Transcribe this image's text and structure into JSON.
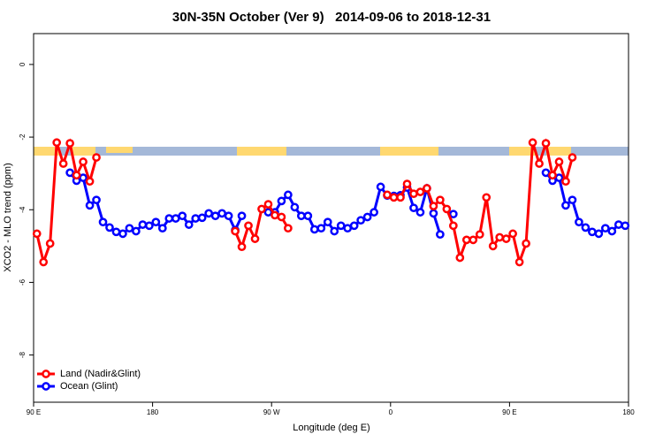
{
  "chart_data": {
    "type": "line",
    "title": "30N-35N October (Ver 9)   2014-09-06 to 2018-12-31",
    "x_label": "Longitude (deg E)",
    "y_label": "XCO2 - MLO trend (ppm)",
    "x": [
      92.5,
      97.5,
      102.5,
      107.5,
      112.5,
      117.5,
      122.5,
      127.5,
      132.5,
      137.5,
      142.5,
      147.5,
      152.5,
      157.5,
      162.5,
      167.5,
      172.5,
      177.5,
      182.5,
      187.5,
      192.5,
      197.5,
      202.5,
      207.5,
      212.5,
      217.5,
      222.5,
      227.5,
      232.5,
      237.5,
      242.5,
      247.5,
      252.5,
      257.5,
      262.5,
      267.5,
      272.5,
      277.5,
      282.5,
      287.5,
      292.5,
      297.5,
      302.5,
      307.5,
      312.5,
      317.5,
      322.5,
      327.5,
      332.5,
      337.5,
      342.5,
      347.5,
      352.5,
      357.5,
      362.5,
      367.5,
      372.5,
      377.5,
      382.5,
      387.5,
      392.5,
      397.5,
      402.5,
      407.5,
      412.5,
      417.5,
      422.5,
      427.5,
      432.5,
      437.5,
      442.5,
      447.5,
      452.5,
      457.5,
      462.5,
      467.5,
      472.5,
      477.5,
      482.5,
      487.5,
      492.5,
      497.5,
      502.5,
      507.5,
      512.5,
      517.5,
      522.5,
      527.5,
      532.5,
      537.5
    ],
    "series": [
      {
        "name": "Ocean (Glint)",
        "color": "#0000ff",
        "values": [
          null,
          null,
          null,
          null,
          null,
          -2.98,
          -3.2,
          -3.12,
          -3.88,
          -3.73,
          -4.34,
          -4.49,
          -4.61,
          -4.66,
          -4.51,
          -4.59,
          -4.41,
          -4.44,
          -4.34,
          -4.51,
          -4.24,
          -4.24,
          -4.17,
          -4.41,
          -4.24,
          -4.22,
          -4.1,
          -4.17,
          -4.1,
          -4.17,
          -4.56,
          -4.17,
          null,
          null,
          null,
          -4.07,
          -4.07,
          -3.76,
          -3.59,
          -3.93,
          -4.17,
          -4.17,
          -4.54,
          -4.51,
          -4.34,
          -4.59,
          -4.44,
          -4.51,
          -4.44,
          -4.29,
          -4.2,
          -4.07,
          -3.37,
          -3.61,
          -3.62,
          -3.6,
          -3.39,
          -3.95,
          -4.07,
          -3.41,
          -4.1,
          -4.68,
          null,
          -4.12,
          null,
          null,
          null,
          null,
          null,
          null,
          null,
          null,
          null,
          null,
          null,
          null,
          null,
          -2.98,
          -3.2,
          -3.12,
          -3.88,
          -3.73,
          -4.34,
          -4.49,
          -4.61,
          -4.66,
          -4.51,
          -4.59,
          -4.41,
          -4.44
        ]
      },
      {
        "name": "Land (Nadir&Glint)",
        "color": "#ff0000",
        "values": [
          -4.66,
          -5.44,
          -4.93,
          -2.15,
          -2.73,
          -2.17,
          -3.05,
          -2.68,
          -3.22,
          -2.56,
          null,
          null,
          null,
          null,
          null,
          null,
          null,
          null,
          null,
          null,
          null,
          null,
          null,
          null,
          null,
          null,
          null,
          null,
          null,
          null,
          -4.59,
          -5.02,
          -4.44,
          -4.8,
          -3.98,
          -3.85,
          -4.15,
          -4.2,
          -4.51,
          null,
          null,
          null,
          null,
          null,
          null,
          null,
          null,
          null,
          null,
          null,
          null,
          null,
          null,
          -3.59,
          -3.66,
          -3.66,
          -3.29,
          -3.56,
          -3.51,
          -3.41,
          -3.9,
          -3.73,
          -3.98,
          -4.44,
          -5.32,
          -4.83,
          -4.83,
          -4.68,
          -3.66,
          -5.0,
          -4.76,
          -4.8,
          -4.66,
          -5.44,
          -4.93,
          -2.15,
          -2.73,
          -2.17,
          -3.05,
          -2.68,
          -3.22,
          -2.56,
          null,
          null,
          null,
          null,
          null,
          null,
          null,
          null
        ]
      }
    ],
    "legend_order": [
      1,
      0
    ],
    "legend": "bottom-left",
    "xlim": [
      90,
      540
    ],
    "xticks": [
      {
        "value": 90,
        "label": "90 E"
      },
      180,
      {
        "value": 270,
        "label": "90 W"
      },
      {
        "value": 360,
        "label": "0"
      },
      {
        "value": 450,
        "label": "90 E"
      },
      {
        "value": 540,
        "label": "180"
      }
    ],
    "ylim": [
      -9.3,
      0.85
    ],
    "yticks": [
      0,
      -2,
      -4,
      -6,
      -8
    ]
  }
}
